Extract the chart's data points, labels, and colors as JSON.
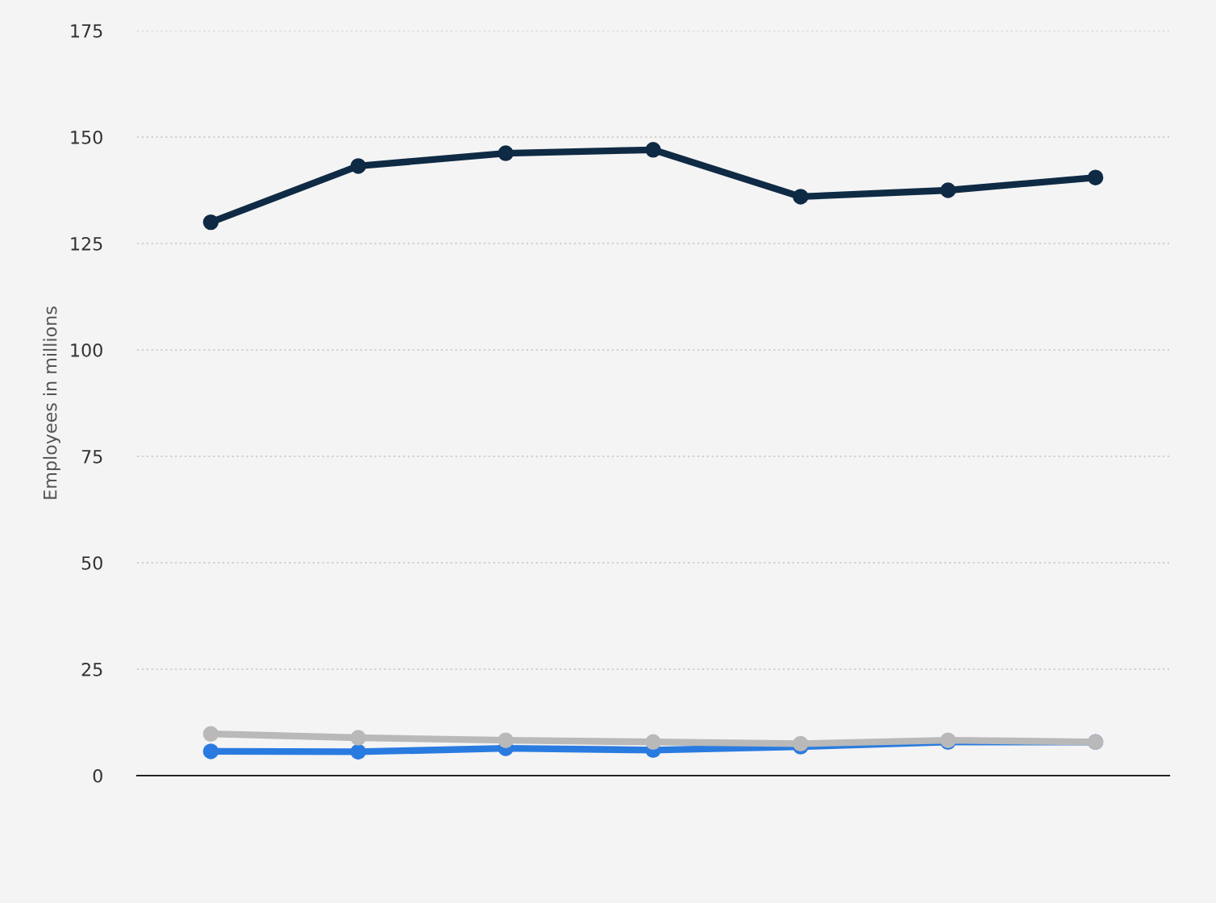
{
  "chart_data": {
    "type": "line",
    "ylabel": "Employees in millions",
    "categories": [
      null,
      null,
      null,
      null,
      null,
      null,
      null
    ],
    "series": [
      {
        "color": "#0f2a44",
        "values": [
          130.0,
          143.2,
          146.2,
          147.0,
          136.0,
          137.5,
          140.5
        ]
      },
      {
        "color": "#2a7be0",
        "values": [
          5.7,
          5.6,
          6.4,
          6.0,
          6.8,
          7.9,
          7.9
        ]
      },
      {
        "color": "#b9b9b9",
        "values": [
          9.8,
          8.9,
          8.3,
          7.9,
          7.5,
          8.3,
          7.9
        ]
      }
    ],
    "ylim": [
      0,
      175
    ],
    "yticks": [
      0,
      25,
      50,
      75,
      100,
      125,
      150,
      175
    ],
    "grid": "y",
    "marker": "circle",
    "line_style": "solid"
  }
}
